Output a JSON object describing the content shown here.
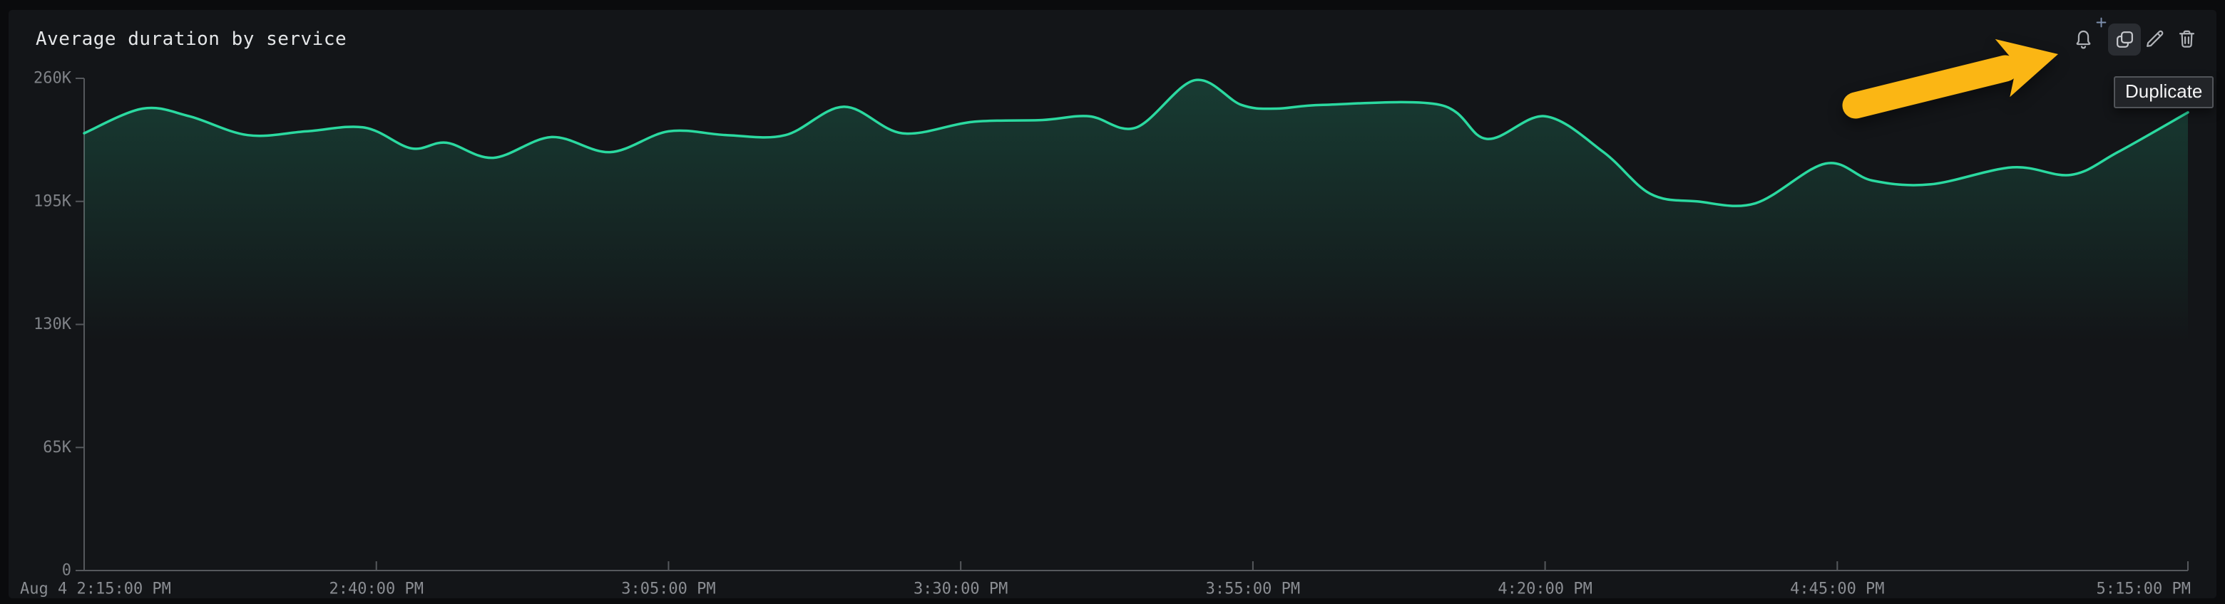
{
  "panel": {
    "title": "Average duration by service"
  },
  "toolbar": {
    "buttons": [
      {
        "id": "add-alert",
        "icon": "bell-plus-icon"
      },
      {
        "id": "duplicate",
        "icon": "copy-icon",
        "active": true
      },
      {
        "id": "edit",
        "icon": "pencil-icon"
      },
      {
        "id": "delete",
        "icon": "trash-icon"
      }
    ],
    "tooltip_label": "Duplicate"
  },
  "annotation": {
    "type": "arrow",
    "color": "#FBB614",
    "points_at": "duplicate-button"
  },
  "colors": {
    "page_bg": "#0A0B0D",
    "panel_bg": "#131518",
    "series": "#2BD9A0",
    "axis_line": "#55585C",
    "y_label": "#7F8287",
    "x_label": "#8A8D92",
    "title": "#E4E6E8",
    "tooltip_bg": "#222428",
    "tooltip_border": "#515459",
    "active_button_bg": "#2A2D32",
    "icon": "#AFB2B7",
    "plus_badge": "#7E90AE",
    "arrow": "#FBB614"
  },
  "chart_data": {
    "type": "line",
    "title": "Average duration by service",
    "x_unit": "minutes after Aug 4 2:15:00 PM",
    "x_range": [
      0,
      180
    ],
    "y_unit": "K",
    "y_range_k": [
      0,
      260
    ],
    "grid": false,
    "legend": false,
    "y_axis": {
      "ticks": [
        {
          "v": 0,
          "label": "0"
        },
        {
          "v": 65,
          "label": "65K"
        },
        {
          "v": 130,
          "label": "130K"
        },
        {
          "v": 195,
          "label": "195K"
        },
        {
          "v": 260,
          "label": "260K"
        }
      ]
    },
    "x_axis": {
      "ticks": [
        {
          "t": 0,
          "label": "Aug 4 2:15:00 PM",
          "align": "left"
        },
        {
          "t": 25,
          "label": "2:40:00 PM"
        },
        {
          "t": 50,
          "label": "3:05:00 PM"
        },
        {
          "t": 75,
          "label": "3:30:00 PM"
        },
        {
          "t": 100,
          "label": "3:55:00 PM"
        },
        {
          "t": 125,
          "label": "4:20:00 PM"
        },
        {
          "t": 150,
          "label": "4:45:00 PM"
        },
        {
          "t": 180,
          "label": "5:15:00 PM",
          "align": "right"
        }
      ]
    },
    "series": [
      {
        "name": "Average duration",
        "color": "#2BD9A0",
        "unit": "K",
        "points": [
          [
            0,
            231
          ],
          [
            5,
            244
          ],
          [
            9,
            240
          ],
          [
            14,
            230
          ],
          [
            19,
            232
          ],
          [
            24,
            234
          ],
          [
            28,
            223
          ],
          [
            31,
            226
          ],
          [
            35,
            218
          ],
          [
            40,
            229
          ],
          [
            45,
            221
          ],
          [
            50,
            232
          ],
          [
            55,
            230
          ],
          [
            60,
            230
          ],
          [
            65,
            245
          ],
          [
            70,
            231
          ],
          [
            76,
            237
          ],
          [
            82,
            238
          ],
          [
            86,
            240
          ],
          [
            90,
            234
          ],
          [
            95,
            259
          ],
          [
            99,
            246
          ],
          [
            102,
            244
          ],
          [
            106,
            246
          ],
          [
            116,
            246
          ],
          [
            120,
            228
          ],
          [
            125,
            240
          ],
          [
            130,
            221
          ],
          [
            134,
            199
          ],
          [
            138,
            195
          ],
          [
            143,
            194
          ],
          [
            149,
            215
          ],
          [
            153,
            206
          ],
          [
            158,
            204
          ],
          [
            165,
            213
          ],
          [
            170,
            209
          ],
          [
            174,
            221
          ],
          [
            180,
            242
          ]
        ]
      }
    ]
  }
}
